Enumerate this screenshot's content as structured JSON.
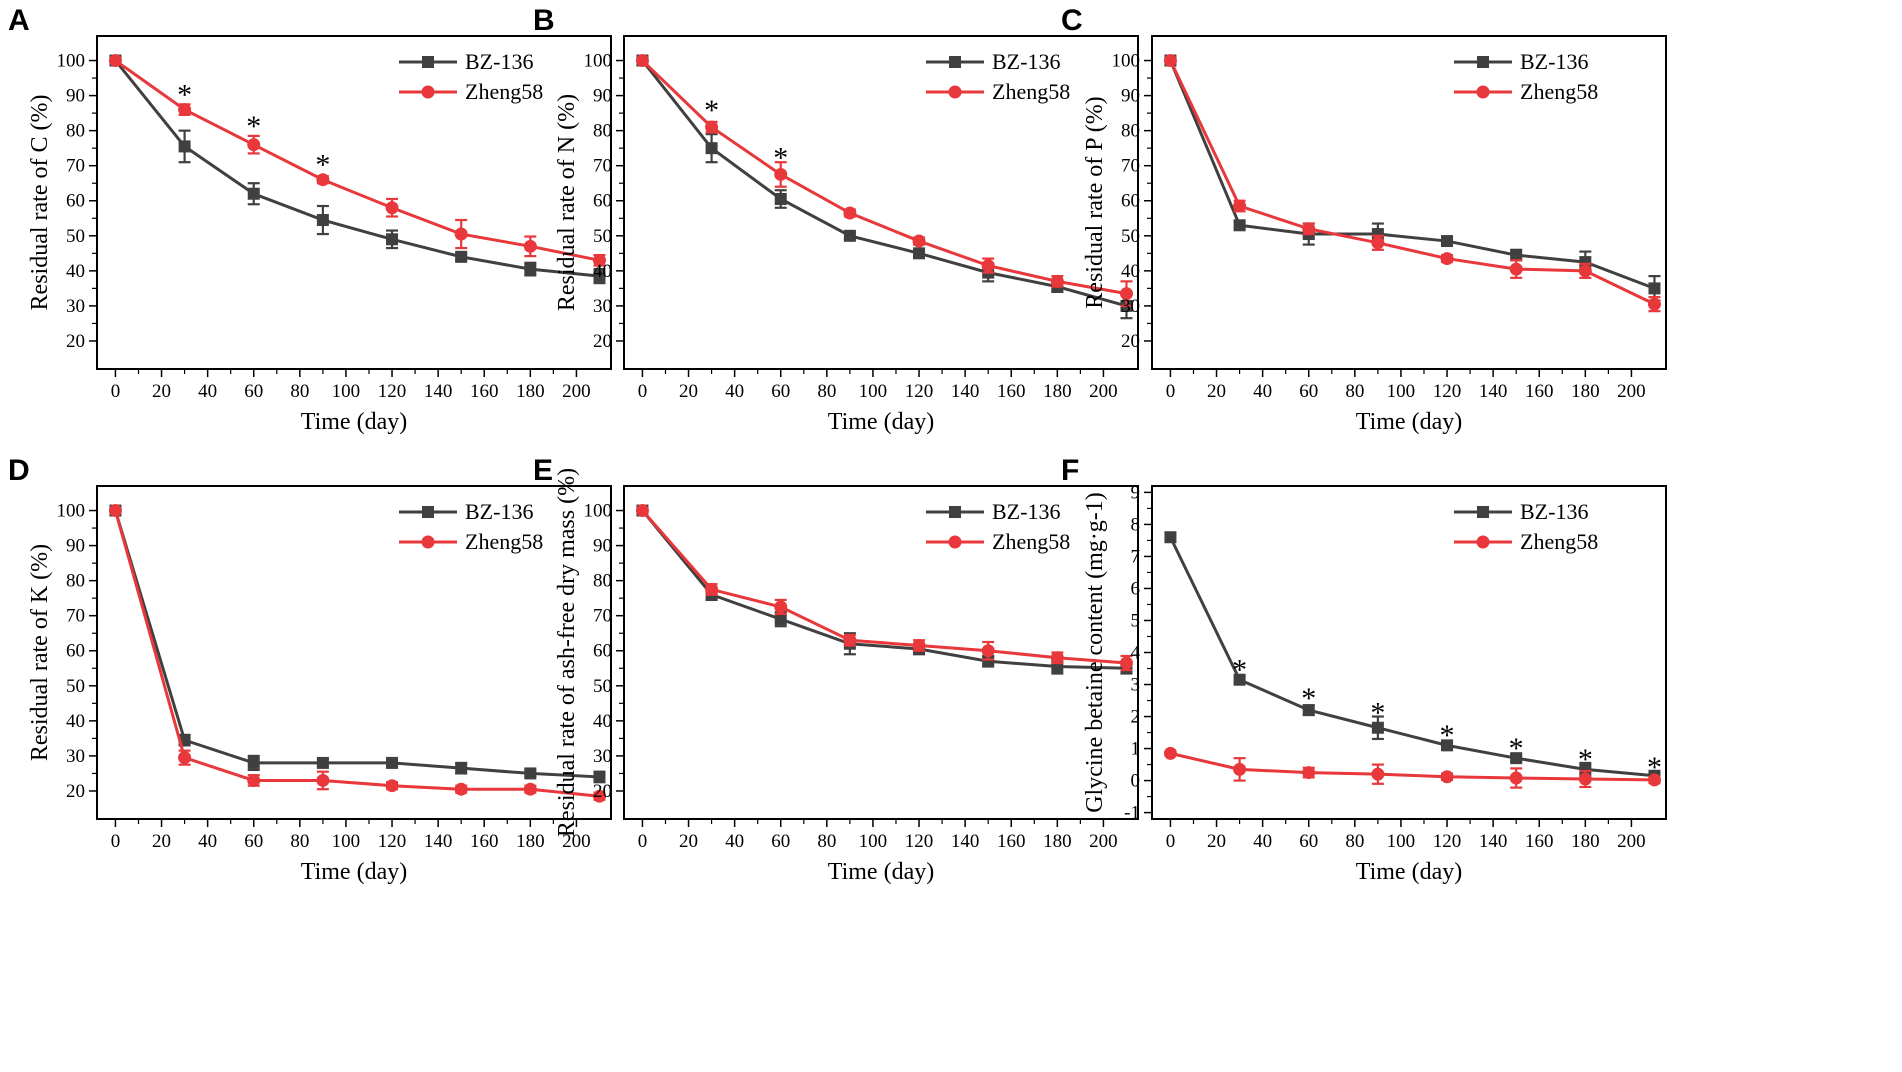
{
  "colors": {
    "bz136": "#404040",
    "zheng58": "#e8383b",
    "axis": "#000000"
  },
  "chart_data": [
    {
      "id": "A",
      "type": "line",
      "panel_label": "A",
      "xlabel": "Time (day)",
      "ylabel": "Residual rate of C (%)",
      "xlim": [
        -8,
        215
      ],
      "ylim": [
        12,
        107
      ],
      "xticks": [
        0,
        20,
        40,
        60,
        80,
        100,
        120,
        140,
        160,
        180,
        200
      ],
      "yticks": [
        20,
        30,
        40,
        50,
        60,
        70,
        80,
        90,
        100
      ],
      "x": [
        0,
        30,
        60,
        90,
        120,
        150,
        180,
        210
      ],
      "series": [
        {
          "name": "BZ-136",
          "values": [
            100,
            75.5,
            62,
            54.5,
            49,
            44,
            40.5,
            38.5
          ],
          "errors": [
            0,
            4.5,
            3,
            4,
            2.5,
            1,
            1.8,
            2
          ]
        },
        {
          "name": "Zheng58",
          "values": [
            100,
            86,
            76,
            66,
            58,
            50.5,
            47,
            43
          ],
          "errors": [
            0,
            1.5,
            2.5,
            1,
            2.5,
            4,
            2.8,
            1.5
          ]
        }
      ],
      "significance": [
        {
          "x": 30,
          "y": 91.5,
          "label": "*"
        },
        {
          "x": 60,
          "y": 82.5,
          "label": "*"
        },
        {
          "x": 90,
          "y": 71.5,
          "label": "*"
        }
      ],
      "legend": [
        "BZ-136",
        "Zheng58"
      ]
    },
    {
      "id": "B",
      "type": "line",
      "panel_label": "B",
      "xlabel": "Time (day)",
      "ylabel": "Residual rate of N (%)",
      "xlim": [
        -8,
        215
      ],
      "ylim": [
        12,
        107
      ],
      "xticks": [
        0,
        20,
        40,
        60,
        80,
        100,
        120,
        140,
        160,
        180,
        200
      ],
      "yticks": [
        20,
        30,
        40,
        50,
        60,
        70,
        80,
        90,
        100
      ],
      "x": [
        0,
        30,
        60,
        90,
        120,
        150,
        180,
        210
      ],
      "series": [
        {
          "name": "BZ-136",
          "values": [
            100,
            75,
            60.5,
            50,
            45,
            39.5,
            35.5,
            30
          ],
          "errors": [
            0,
            4,
            2.5,
            1,
            1,
            2.5,
            1.5,
            3.5
          ]
        },
        {
          "name": "Zheng58",
          "values": [
            100,
            81,
            67.5,
            56.5,
            48.5,
            41.5,
            37,
            33.5
          ],
          "errors": [
            0,
            1.5,
            3.5,
            1,
            1,
            2,
            1.5,
            3.5
          ]
        }
      ],
      "significance": [
        {
          "x": 30,
          "y": 87,
          "label": "*"
        },
        {
          "x": 60,
          "y": 73.5,
          "label": "*"
        }
      ],
      "legend": [
        "BZ-136",
        "Zheng58"
      ]
    },
    {
      "id": "C",
      "type": "line",
      "panel_label": "C",
      "xlabel": "Time (day)",
      "ylabel": "Residual rate of P (%)",
      "xlim": [
        -8,
        215
      ],
      "ylim": [
        12,
        107
      ],
      "xticks": [
        0,
        20,
        40,
        60,
        80,
        100,
        120,
        140,
        160,
        180,
        200
      ],
      "yticks": [
        20,
        30,
        40,
        50,
        60,
        70,
        80,
        90,
        100
      ],
      "x": [
        0,
        30,
        60,
        90,
        120,
        150,
        180,
        210
      ],
      "series": [
        {
          "name": "BZ-136",
          "values": [
            100,
            53,
            50.5,
            50.5,
            48.5,
            44.5,
            42.5,
            35
          ],
          "errors": [
            0,
            1,
            3,
            3,
            1,
            1.5,
            3,
            3.5
          ]
        },
        {
          "name": "Zheng58",
          "values": [
            100,
            58.5,
            52,
            48,
            43.5,
            40.5,
            40,
            30.5
          ],
          "errors": [
            0,
            1.5,
            1.5,
            2,
            1,
            2.5,
            2,
            2
          ]
        }
      ],
      "significance": [],
      "legend": [
        "BZ-136",
        "Zheng58"
      ]
    },
    {
      "id": "D",
      "type": "line",
      "panel_label": "D",
      "xlabel": "Time (day)",
      "ylabel": "Residual rate of K (%)",
      "xlim": [
        -8,
        215
      ],
      "ylim": [
        12,
        107
      ],
      "xticks": [
        0,
        20,
        40,
        60,
        80,
        100,
        120,
        140,
        160,
        180,
        200
      ],
      "yticks": [
        20,
        30,
        40,
        50,
        60,
        70,
        80,
        90,
        100
      ],
      "x": [
        0,
        30,
        60,
        90,
        120,
        150,
        180,
        210
      ],
      "series": [
        {
          "name": "BZ-136",
          "values": [
            100,
            34.5,
            28,
            28,
            28,
            26.5,
            25,
            24
          ],
          "errors": [
            0,
            1.5,
            2,
            1,
            1,
            1.5,
            1,
            1.5
          ]
        },
        {
          "name": "Zheng58",
          "values": [
            100,
            29.5,
            23,
            23,
            21.5,
            20.5,
            20.5,
            18.5
          ],
          "errors": [
            0,
            2,
            1.5,
            2.5,
            1,
            1,
            1,
            1
          ]
        }
      ],
      "significance": [],
      "legend": [
        "BZ-136",
        "Zheng58"
      ]
    },
    {
      "id": "E",
      "type": "line",
      "panel_label": "E",
      "xlabel": "Time (day)",
      "ylabel": "Residual rate of ash-free dry mass (%)",
      "xlim": [
        -8,
        215
      ],
      "ylim": [
        12,
        107
      ],
      "xticks": [
        0,
        20,
        40,
        60,
        80,
        100,
        120,
        140,
        160,
        180,
        200
      ],
      "yticks": [
        20,
        30,
        40,
        50,
        60,
        70,
        80,
        90,
        100
      ],
      "x": [
        0,
        30,
        60,
        90,
        120,
        150,
        180,
        210
      ],
      "series": [
        {
          "name": "BZ-136",
          "values": [
            100,
            76,
            69,
            62,
            60.5,
            57,
            55.5,
            55
          ],
          "errors": [
            0,
            1.5,
            2,
            3,
            1.5,
            1.5,
            2,
            1.5
          ]
        },
        {
          "name": "Zheng58",
          "values": [
            100,
            77.5,
            72.5,
            63,
            61.5,
            60,
            58,
            56.5
          ],
          "errors": [
            0,
            1.5,
            2,
            1.5,
            1.5,
            2.5,
            1.5,
            2
          ]
        }
      ],
      "significance": [],
      "legend": [
        "BZ-136",
        "Zheng58"
      ]
    },
    {
      "id": "F",
      "type": "line",
      "panel_label": "F",
      "xlabel": "Time (day)",
      "ylabel": "Glycine betaine content  (mg·g-1)",
      "xlim": [
        -8,
        215
      ],
      "ylim": [
        -1.2,
        9.2
      ],
      "xticks": [
        0,
        20,
        40,
        60,
        80,
        100,
        120,
        140,
        160,
        180,
        200
      ],
      "yticks": [
        -1,
        0,
        1,
        2,
        3,
        4,
        5,
        6,
        7,
        8,
        9
      ],
      "x": [
        0,
        30,
        60,
        90,
        120,
        150,
        180,
        210
      ],
      "series": [
        {
          "name": "BZ-136",
          "values": [
            7.6,
            3.15,
            2.2,
            1.65,
            1.1,
            0.7,
            0.35,
            0.15
          ],
          "errors": [
            0,
            0.1,
            0.15,
            0.35,
            0.1,
            0.1,
            0.2,
            0.1
          ]
        },
        {
          "name": "Zheng58",
          "values": [
            0.85,
            0.35,
            0.25,
            0.2,
            0.12,
            0.08,
            0.05,
            0.02
          ],
          "errors": [
            0,
            0.35,
            0.15,
            0.3,
            0.1,
            0.3,
            0.25,
            0.1
          ]
        }
      ],
      "significance": [
        {
          "x": 30,
          "y": 3.6,
          "label": "*"
        },
        {
          "x": 60,
          "y": 2.7,
          "label": "*"
        },
        {
          "x": 90,
          "y": 2.25,
          "label": "*"
        },
        {
          "x": 120,
          "y": 1.55,
          "label": "*"
        },
        {
          "x": 150,
          "y": 1.15,
          "label": "*"
        },
        {
          "x": 180,
          "y": 0.8,
          "label": "*"
        },
        {
          "x": 210,
          "y": 0.55,
          "label": "*"
        }
      ],
      "legend": [
        "BZ-136",
        "Zheng58"
      ]
    }
  ]
}
